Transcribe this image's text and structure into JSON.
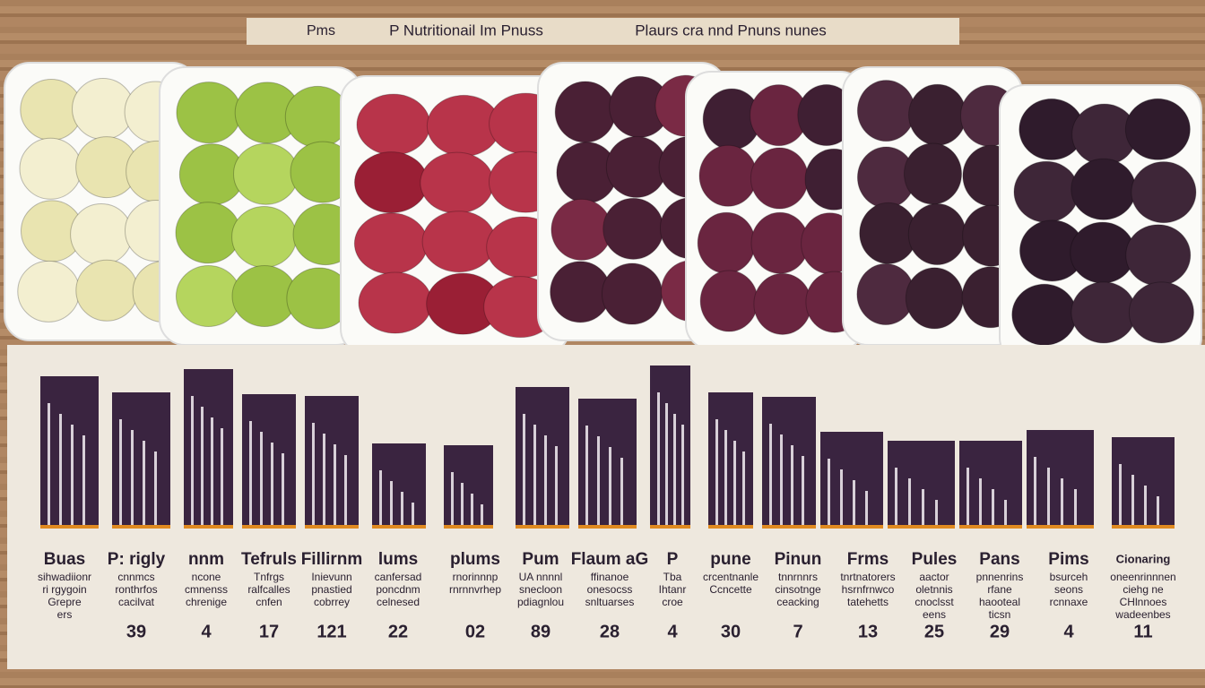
{
  "header": {
    "left": "Pms",
    "center": "P Nutritionail Im Pnuss",
    "right": "Plaurs cra nnd Pnuns nunes"
  },
  "columns": [
    {
      "title": "Buas",
      "lines": [
        "sihwadiionr",
        "ri rgygoin",
        "Grepre",
        "ers"
      ]
    },
    {
      "title": "P: rigly",
      "lines": [
        "cnnmcs",
        "ronthrfos",
        "cacilvat"
      ],
      "number": "39"
    },
    {
      "title": "nnm",
      "lines": [
        "ncone",
        "cmnenss",
        "chrenige"
      ],
      "number": "4"
    },
    {
      "title": "Tefruls",
      "lines": [
        "Tnfrgs",
        "ralfcalles",
        "cnfen"
      ],
      "number": "17"
    },
    {
      "title": "Fillirnm",
      "lines": [
        "Inievunn",
        "pnastied",
        "cobrrey"
      ],
      "number": "121"
    },
    {
      "title": "lums",
      "lines": [
        "canfersad",
        "poncdnm",
        "celnesed"
      ],
      "number": "22"
    },
    {
      "title": "plums",
      "lines": [
        "rnorinnnp",
        "rnrnnvrhep"
      ],
      "number": "02"
    },
    {
      "title": "Pum",
      "lines": [
        "UA nnnnl",
        "snecloon",
        "pdiagnlou"
      ],
      "number": "89"
    },
    {
      "title": "Flaum aG",
      "lines": [
        "ffinanoe",
        "onesocss",
        "snltuarses"
      ],
      "number": "28"
    },
    {
      "title": "P",
      "lines": [
        "Tba",
        "Ihtanr",
        "croe"
      ],
      "number": "4"
    },
    {
      "title": "pune",
      "lines": [
        "crcentnanle",
        "Ccncette"
      ],
      "number": "30"
    },
    {
      "title": "Pinun",
      "lines": [
        "tnnrnnrs",
        "cinsotnge",
        "ceacking"
      ],
      "number": "7"
    },
    {
      "title": "Frms",
      "lines": [
        "tnrtnatorers",
        "hsrnfrnwco",
        "tatehetts"
      ],
      "number": "13"
    },
    {
      "title": "Pules",
      "lines": [
        "aactor",
        "oletnnis",
        "cnoclsst",
        "eens"
      ],
      "number": "25"
    },
    {
      "title": "Pans",
      "lines": [
        "pnnenrins",
        "rfane",
        "haooteal",
        "ticsn"
      ],
      "number": "29"
    },
    {
      "title": "Pims",
      "lines": [
        "bsurceh",
        "seons",
        "rcnnaxe"
      ],
      "number": "4"
    },
    {
      "title": "Cionaring",
      "lines": [
        "oneenrinnnen",
        "ciehg ne",
        "CHlnnoes",
        "wadeenbes"
      ],
      "number": "11"
    }
  ]
}
